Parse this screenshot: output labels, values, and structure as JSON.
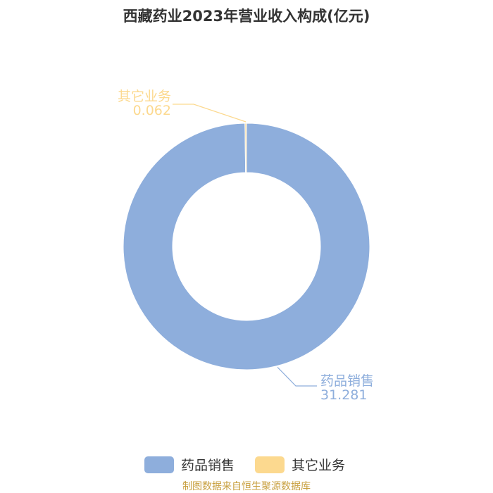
{
  "chart_data": {
    "type": "pie",
    "title": "西藏药业2023年营业收入构成(亿元)",
    "slices": [
      {
        "name": "药品销售",
        "value": 31.281,
        "value_label": "31.281",
        "color": "#8eaedc"
      },
      {
        "name": "其它业务",
        "value": 0.062,
        "value_label": "0.062",
        "color": "#fcd98f"
      }
    ],
    "donut": true,
    "legend_position": "bottom",
    "source": "制图数据来自恒生聚源数据库"
  }
}
